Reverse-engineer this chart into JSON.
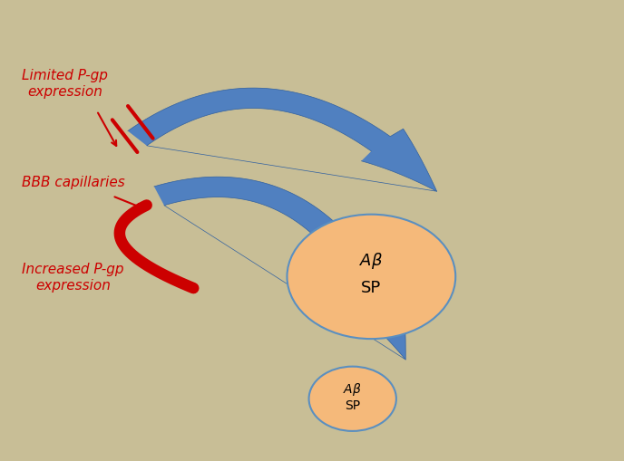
{
  "background_color": "#c8be96",
  "blue_arrow_color": "#4a7bbf",
  "blue_arrow_light": "#8ab0d8",
  "red_color": "#cc0000",
  "circle_large_color": "#f5b97a",
  "circle_large_edgecolor": "#5a8fc0",
  "circle_small_color": "#f5b97a",
  "circle_small_edgecolor": "#5a8fc0",
  "text_limited": "Limited P-gp\nexpression",
  "text_bbb": "BBB capillaries",
  "text_increased": "Increased P-gp\nexpression",
  "figsize": [
    6.88,
    5.09
  ],
  "dpi": 100
}
